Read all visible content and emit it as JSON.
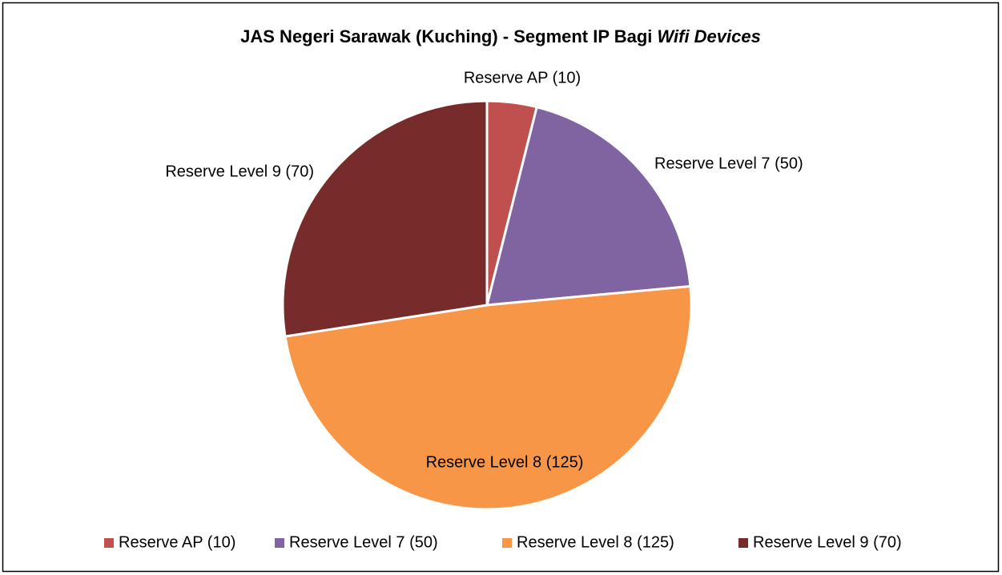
{
  "chart_data": {
    "type": "pie",
    "title": [
      "JAS Negeri Sarawak (Kuching) - Segment IP Bagi",
      "Wifi Devices"
    ],
    "categories": [
      "Reserve AP (10)",
      "Reserve Level 7 (50)",
      "Reserve Level 8 (125)",
      "Reserve Level 9 (70)"
    ],
    "values": [
      10,
      50,
      125,
      70
    ],
    "colors": [
      "#c0504d",
      "#8064a2",
      "#f79646",
      "#772c2b"
    ],
    "legend": "bottom"
  }
}
